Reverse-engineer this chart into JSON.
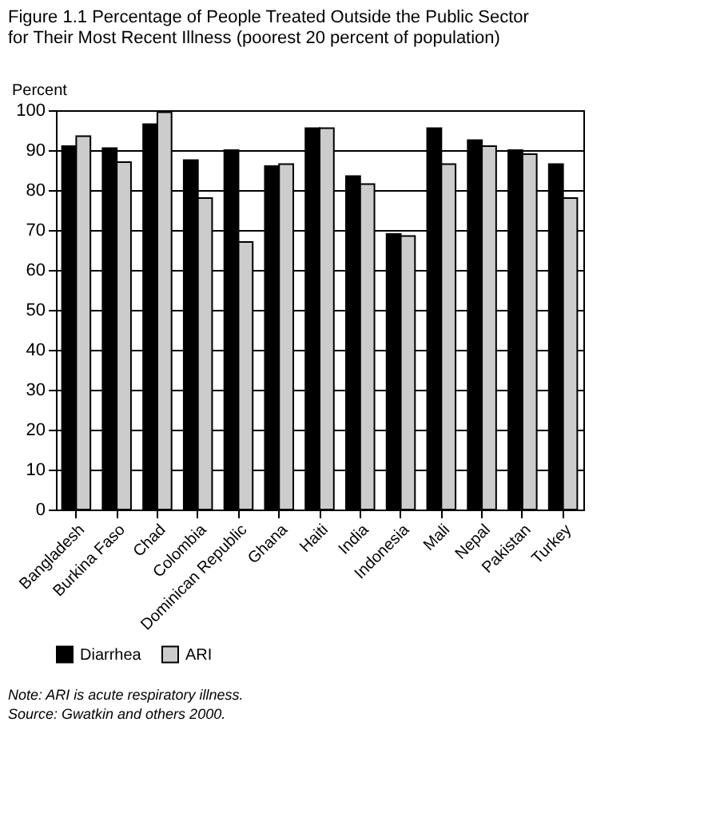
{
  "chart_data": {
    "type": "bar",
    "title": "Figure 1.1 Percentage of People Treated Outside the Public Sector for Their Most Recent Illness (poorest 20 percent of population)",
    "ylabel": "Percent",
    "categories": [
      "Bangladesh",
      "Burkina Faso",
      "Chad",
      "Colombia",
      "Dominican Republic",
      "Ghana",
      "Haiti",
      "India",
      "Indonesia",
      "Mali",
      "Nepal",
      "Pakistan",
      "Turkey"
    ],
    "series": [
      {
        "name": "Diarrhea",
        "color": "#000000",
        "values": [
          91,
          90.5,
          96.5,
          87.5,
          90,
          86,
          95.5,
          83.5,
          69,
          95.5,
          92.5,
          90,
          86.5
        ]
      },
      {
        "name": "ARI",
        "color": "#cccccc",
        "values": [
          93.5,
          87,
          99.5,
          78,
          67,
          86.5,
          95.5,
          81.5,
          68.5,
          86.5,
          91,
          89,
          78
        ]
      }
    ],
    "ylim": [
      0,
      100
    ],
    "yticks": [
      0,
      10,
      20,
      30,
      40,
      50,
      60,
      70,
      80,
      90,
      100
    ],
    "grid": "y",
    "legend": "bottom",
    "annotations": [
      "Note: ARI is acute respiratory illness.",
      "Source: Gwatkin and others 2000."
    ]
  }
}
